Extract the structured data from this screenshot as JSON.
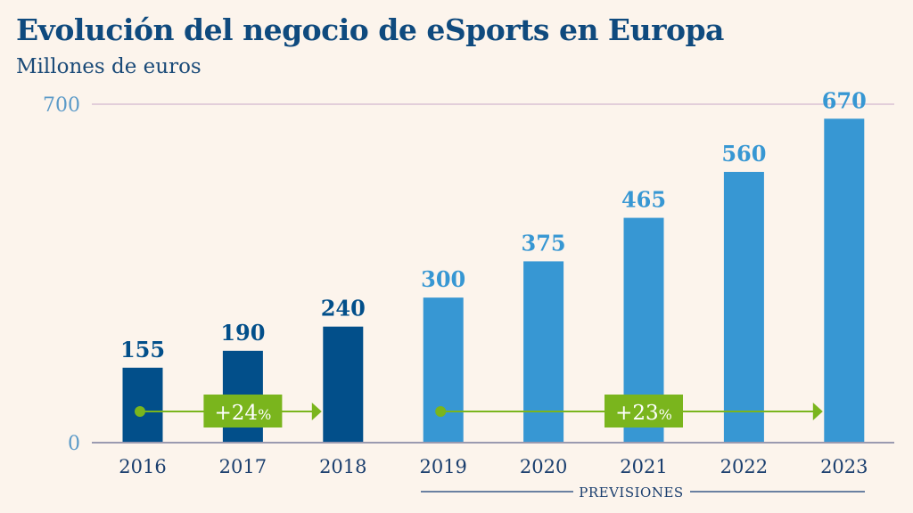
{
  "chart_data": {
    "type": "bar",
    "title": "Evolución del negocio de eSports en Europa",
    "subtitle": "Millones de euros",
    "categories": [
      "2016",
      "2017",
      "2018",
      "2019",
      "2020",
      "2021",
      "2022",
      "2023"
    ],
    "values": [
      155,
      190,
      240,
      300,
      375,
      465,
      560,
      670
    ],
    "forecast_from": "2019",
    "ylim": [
      0,
      700
    ],
    "yticks": [
      0,
      700
    ],
    "grid": "700 only",
    "annotations": [
      {
        "label": "+24",
        "unit": "%",
        "from": "2016",
        "to": "2018"
      },
      {
        "label": "+23",
        "unit": "%",
        "from": "2019",
        "to": "2023"
      }
    ],
    "forecast_label": "PREVISIONES",
    "colors": {
      "actual": "#024f8a",
      "forecast": "#3797d3",
      "growth": "#7ab51d",
      "axis": "#9a9ab0",
      "ytick": "#5b9ac8"
    }
  }
}
